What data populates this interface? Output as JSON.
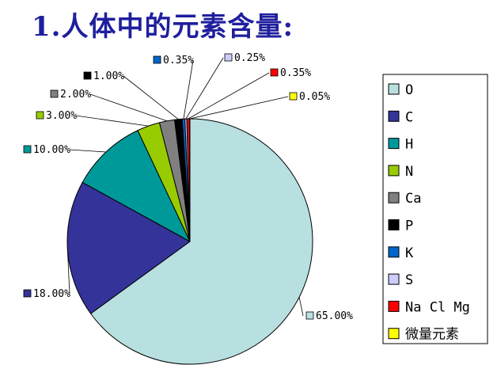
{
  "title": "1.人体中的元素含量:",
  "chart_data": {
    "type": "pie",
    "categories": [
      "O",
      "C",
      "H",
      "N",
      "Ca",
      "P",
      "K",
      "S",
      "Na Cl Mg",
      "微量元素"
    ],
    "values": [
      65.0,
      18.0,
      10.0,
      3.0,
      2.0,
      1.0,
      0.35,
      0.25,
      0.35,
      0.05
    ],
    "labels": [
      "65.00%",
      "18.00%",
      "10.00%",
      "3.00%",
      "2.00%",
      "1.00%",
      "0.35%",
      "0.25%",
      "0.35%",
      "0.05%"
    ],
    "colors": [
      "#b8e0e0",
      "#333399",
      "#009999",
      "#99cc00",
      "#808080",
      "#000000",
      "#0066cc",
      "#ccccff",
      "#ff0000",
      "#ffff00"
    ],
    "start_angle_deg": 90,
    "direction": "clockwise",
    "legend_position": "right"
  }
}
